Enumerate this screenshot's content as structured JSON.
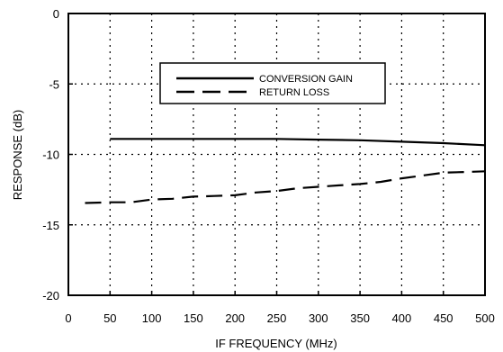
{
  "chart_data": {
    "type": "line",
    "title": "",
    "xlabel": "IF FREQUENCY (MHz)",
    "ylabel": "RESPONSE (dB)",
    "xlim": [
      0,
      500
    ],
    "ylim": [
      -20,
      0
    ],
    "x_ticks": [
      0,
      50,
      100,
      150,
      200,
      250,
      300,
      350,
      400,
      450,
      500
    ],
    "y_ticks": [
      0,
      -5,
      -10,
      -15,
      -20
    ],
    "x_tick_labels": [
      "0",
      "50",
      "100",
      "150",
      "200",
      "250",
      "300",
      "350",
      "400",
      "450",
      "500"
    ],
    "y_tick_labels": [
      "0",
      "-5",
      "-10",
      "-15",
      "-20"
    ],
    "grid": true,
    "grid_style": "dotted",
    "legend_position": "top-center",
    "series": [
      {
        "name": "CONVERSION GAIN",
        "line_style": "solid",
        "color": "#000000",
        "x": [
          50,
          100,
          150,
          200,
          250,
          300,
          350,
          400,
          450,
          500
        ],
        "y": [
          -8.9,
          -8.9,
          -8.9,
          -8.9,
          -8.9,
          -8.95,
          -9.0,
          -9.1,
          -9.2,
          -9.35
        ]
      },
      {
        "name": "RETURN LOSS",
        "line_style": "dashed",
        "color": "#000000",
        "x": [
          20,
          50,
          75,
          100,
          125,
          150,
          175,
          200,
          225,
          250,
          275,
          300,
          325,
          350,
          375,
          400,
          425,
          450,
          475,
          500
        ],
        "y": [
          -13.45,
          -13.4,
          -13.4,
          -13.2,
          -13.15,
          -13.0,
          -12.95,
          -12.9,
          -12.7,
          -12.6,
          -12.4,
          -12.3,
          -12.2,
          -12.1,
          -11.95,
          -11.7,
          -11.5,
          -11.3,
          -11.25,
          -11.2
        ]
      }
    ]
  }
}
